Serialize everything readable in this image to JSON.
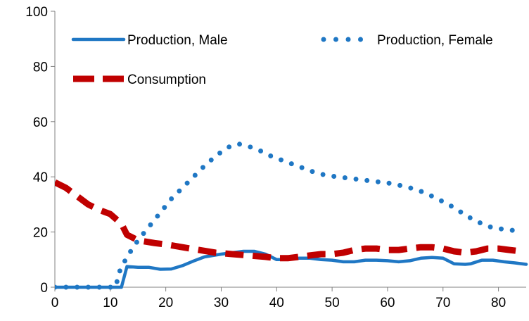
{
  "chart_data": {
    "type": "line",
    "title": "",
    "xlabel": "",
    "ylabel": "",
    "xlim": [
      0,
      85
    ],
    "ylim": [
      0,
      100
    ],
    "x_ticks": [
      "0",
      "10",
      "20",
      "30",
      "40",
      "50",
      "60",
      "70",
      "80"
    ],
    "y_ticks": [
      "0",
      "20",
      "40",
      "60",
      "80",
      "100"
    ],
    "grid": false,
    "legend_position": "top",
    "series": [
      {
        "name": "Production, Male",
        "style": "solid",
        "color": "#1f77c4",
        "points": [
          [
            0,
            0
          ],
          [
            5,
            0
          ],
          [
            10,
            0
          ],
          [
            12,
            0
          ],
          [
            13,
            7.5
          ],
          [
            15,
            7.2
          ],
          [
            17,
            7.2
          ],
          [
            19,
            6.5
          ],
          [
            21,
            6.6
          ],
          [
            23,
            7.8
          ],
          [
            25,
            9.5
          ],
          [
            27,
            11
          ],
          [
            30,
            12
          ],
          [
            32,
            12.5
          ],
          [
            34,
            13
          ],
          [
            36,
            13
          ],
          [
            38,
            12
          ],
          [
            40,
            10
          ],
          [
            42,
            10
          ],
          [
            44,
            10.5
          ],
          [
            46,
            10.5
          ],
          [
            48,
            10
          ],
          [
            50,
            9.8
          ],
          [
            52,
            9.2
          ],
          [
            54,
            9.2
          ],
          [
            56,
            9.8
          ],
          [
            58,
            9.8
          ],
          [
            60,
            9.6
          ],
          [
            62,
            9.2
          ],
          [
            64,
            9.6
          ],
          [
            66,
            10.5
          ],
          [
            68,
            10.8
          ],
          [
            70,
            10.5
          ],
          [
            72,
            8.5
          ],
          [
            74,
            8.3
          ],
          [
            75,
            8.5
          ],
          [
            77,
            9.8
          ],
          [
            79,
            9.8
          ],
          [
            81,
            9.2
          ],
          [
            83,
            8.8
          ],
          [
            85,
            8.3
          ]
        ]
      },
      {
        "name": "Production, Female",
        "style": "dotted",
        "color": "#1f77c4",
        "points": [
          [
            0,
            0
          ],
          [
            2,
            0
          ],
          [
            4,
            0
          ],
          [
            6,
            0
          ],
          [
            8,
            0
          ],
          [
            11,
            0
          ],
          [
            11.5,
            5
          ],
          [
            13,
            11
          ],
          [
            15,
            17
          ],
          [
            17,
            22
          ],
          [
            19,
            27
          ],
          [
            21,
            32
          ],
          [
            23,
            36
          ],
          [
            25,
            40
          ],
          [
            27,
            44
          ],
          [
            29,
            47.5
          ],
          [
            31,
            50.5
          ],
          [
            33,
            52
          ],
          [
            35,
            51
          ],
          [
            37,
            49.5
          ],
          [
            39,
            47.5
          ],
          [
            41,
            46
          ],
          [
            43,
            44.5
          ],
          [
            45,
            43
          ],
          [
            47,
            41.5
          ],
          [
            49,
            40.5
          ],
          [
            51,
            40
          ],
          [
            53,
            39.5
          ],
          [
            55,
            39
          ],
          [
            57,
            38.5
          ],
          [
            59,
            38
          ],
          [
            61,
            37.5
          ],
          [
            63,
            36.5
          ],
          [
            65,
            35.5
          ],
          [
            67,
            34
          ],
          [
            69,
            32
          ],
          [
            71,
            30
          ],
          [
            73,
            27.5
          ],
          [
            75,
            25
          ],
          [
            77,
            23
          ],
          [
            79,
            21.5
          ],
          [
            81,
            21
          ],
          [
            83,
            20.5
          ]
        ]
      },
      {
        "name": "Consumption",
        "style": "dashed",
        "color": "#c00000",
        "points": [
          [
            0,
            38
          ],
          [
            2,
            36
          ],
          [
            4,
            33
          ],
          [
            6,
            30
          ],
          [
            8,
            28
          ],
          [
            10,
            26.5
          ],
          [
            12,
            23
          ],
          [
            13,
            19
          ],
          [
            15,
            17
          ],
          [
            18,
            16
          ],
          [
            20,
            15.5
          ],
          [
            23,
            14.5
          ],
          [
            26,
            13.5
          ],
          [
            29,
            12.5
          ],
          [
            32,
            12
          ],
          [
            35,
            11.5
          ],
          [
            38,
            11
          ],
          [
            40,
            10.5
          ],
          [
            42,
            10.5
          ],
          [
            44,
            11
          ],
          [
            46,
            11.5
          ],
          [
            48,
            12
          ],
          [
            50,
            12
          ],
          [
            52,
            12.5
          ],
          [
            54,
            13.5
          ],
          [
            56,
            14
          ],
          [
            58,
            14
          ],
          [
            60,
            13.5
          ],
          [
            62,
            13.5
          ],
          [
            64,
            14
          ],
          [
            66,
            14.5
          ],
          [
            68,
            14.5
          ],
          [
            70,
            14
          ],
          [
            72,
            13
          ],
          [
            74,
            12.5
          ],
          [
            76,
            13
          ],
          [
            78,
            14
          ],
          [
            80,
            14
          ],
          [
            82,
            13.5
          ],
          [
            84,
            13
          ]
        ]
      }
    ]
  }
}
